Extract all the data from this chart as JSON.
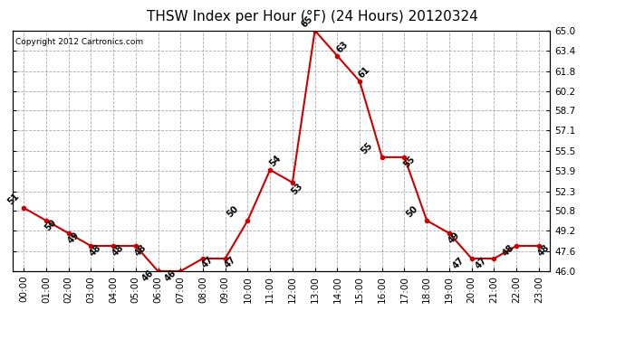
{
  "title": "THSW Index per Hour (°F) (24 Hours) 20120324",
  "copyright": "Copyright 2012 Cartronics.com",
  "x_labels": [
    "00:00",
    "01:00",
    "02:00",
    "03:00",
    "04:00",
    "05:00",
    "06:00",
    "07:00",
    "08:00",
    "09:00",
    "10:00",
    "11:00",
    "12:00",
    "13:00",
    "14:00",
    "15:00",
    "16:00",
    "17:00",
    "18:00",
    "19:00",
    "20:00",
    "21:00",
    "22:00",
    "23:00"
  ],
  "x_data": [
    0,
    1,
    2,
    3,
    4,
    5,
    6,
    7,
    8,
    9,
    10,
    11,
    12,
    13,
    14,
    15,
    16,
    17,
    18,
    19,
    20,
    21,
    22,
    23
  ],
  "y_data": [
    51,
    50,
    49,
    48,
    48,
    48,
    46,
    46,
    47,
    47,
    50,
    54,
    53,
    65,
    63,
    61,
    55,
    55,
    50,
    49,
    47,
    47,
    48,
    48
  ],
  "ylim": [
    46.0,
    65.0
  ],
  "yticks": [
    46.0,
    47.6,
    49.2,
    50.8,
    52.3,
    53.9,
    55.5,
    57.1,
    58.7,
    60.2,
    61.8,
    63.4,
    65.0
  ],
  "ytick_labels": [
    "46.0",
    "47.6",
    "49.2",
    "50.8",
    "52.3",
    "53.9",
    "55.5",
    "57.1",
    "58.7",
    "60.2",
    "61.8",
    "63.4",
    "65.0"
  ],
  "line_color": "#cc0000",
  "bg_color": "#ffffff",
  "grid_color": "#aaaaaa",
  "title_fontsize": 11,
  "tick_fontsize": 7.5,
  "annotation_fontsize": 7,
  "copyright_fontsize": 6.5
}
